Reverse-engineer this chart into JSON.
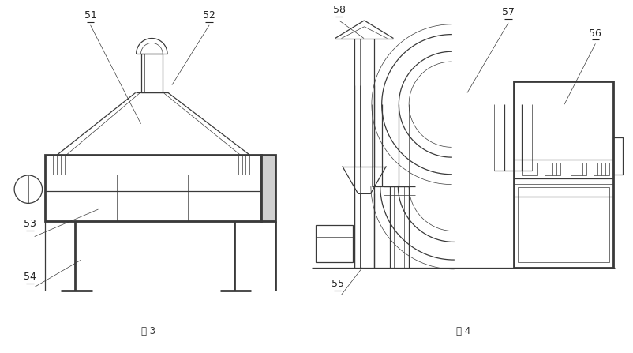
{
  "fig_width": 8.03,
  "fig_height": 4.47,
  "dpi": 100,
  "bg_color": "#ffffff",
  "lc": "#3a3a3a",
  "lw": 0.9,
  "tlw": 0.5,
  "thw": 2.0,
  "fig3_label": "图 3",
  "fig4_label": "图 4"
}
